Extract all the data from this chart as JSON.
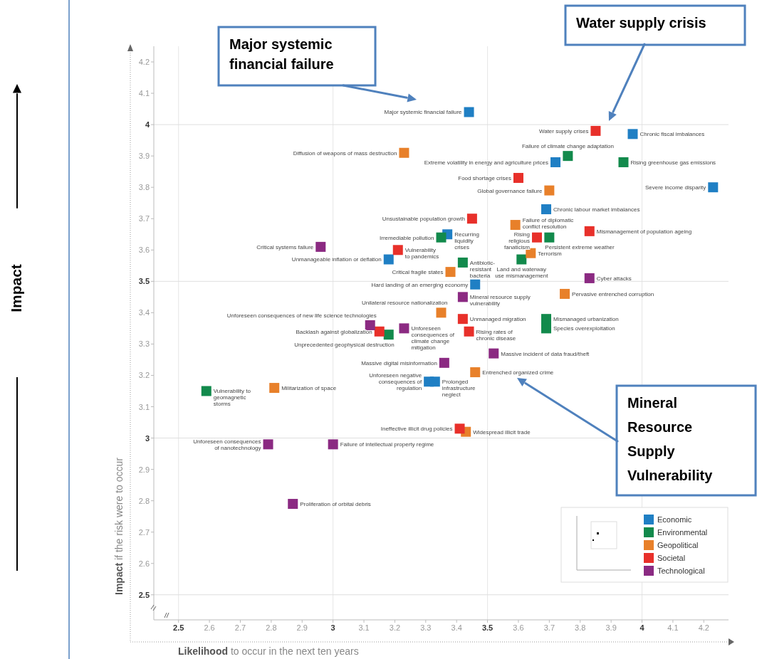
{
  "chart_data": {
    "type": "scatter",
    "xlabel": "Likelihood to occur in the next ten years",
    "ylabel": "Impact if the risk were to occur",
    "xlim": [
      2.42,
      4.28
    ],
    "ylim": [
      2.42,
      4.25
    ],
    "xticks": [
      2.5,
      2.6,
      2.7,
      2.8,
      2.9,
      3,
      3.1,
      3.2,
      3.3,
      3.4,
      3.5,
      3.6,
      3.7,
      3.8,
      3.9,
      4,
      4.1,
      4.2
    ],
    "yticks": [
      2.5,
      2.6,
      2.7,
      2.8,
      2.9,
      3,
      3.1,
      3.2,
      3.3,
      3.4,
      3.5,
      3.6,
      3.7,
      3.8,
      3.9,
      4,
      4.1,
      4.2
    ],
    "marker": "square",
    "legend": "bottom right",
    "grid": false,
    "ref_lines": [
      {
        "axis": "x",
        "value": 2.5,
        "color": "#e6e6e6"
      },
      {
        "axis": "x",
        "value": 3,
        "color": "#e6e6e6"
      },
      {
        "axis": "x",
        "value": 3.5,
        "color": "#e6e6e6"
      },
      {
        "axis": "x",
        "value": 4,
        "color": "#e6e6e6"
      },
      {
        "axis": "y",
        "value": 2.5,
        "color": "#dedede"
      },
      {
        "axis": "y",
        "value": 3,
        "color": "#dedede"
      },
      {
        "axis": "y",
        "value": 3.5,
        "color": "#dedede"
      },
      {
        "axis": "y",
        "value": 4,
        "color": "#dedede"
      }
    ],
    "series": [
      {
        "name": "Economic",
        "color": "#1f7fc4",
        "x": [
          3.44,
          3.97,
          3.72,
          4.23,
          3.69,
          3.37,
          3.18,
          3.46,
          3.31,
          3.33
        ],
        "values": [
          4.04,
          3.97,
          3.88,
          3.8,
          3.73,
          3.65,
          3.57,
          3.49,
          3.18,
          3.18
        ]
      },
      {
        "name": "Environmental",
        "color": "#128a4c",
        "x": [
          3.76,
          3.94,
          3.35,
          3.7,
          3.42,
          3.61,
          3.69,
          3.69,
          3.18,
          2.59
        ],
        "values": [
          3.9,
          3.88,
          3.64,
          3.64,
          3.56,
          3.57,
          3.38,
          3.35,
          3.33,
          3.15
        ]
      },
      {
        "name": "Geopolitical",
        "color": "#e8802a",
        "x": [
          3.23,
          3.7,
          3.59,
          3.64,
          3.38,
          3.75,
          3.35,
          3.46,
          3.43,
          2.81
        ],
        "values": [
          3.91,
          3.79,
          3.68,
          3.59,
          3.53,
          3.46,
          3.4,
          3.21,
          3.02,
          3.16
        ]
      },
      {
        "name": "Societal",
        "color": "#e8302a",
        "x": [
          3.85,
          3.6,
          3.45,
          3.83,
          3.66,
          3.21,
          3.42,
          3.44,
          3.15,
          3.41
        ],
        "values": [
          3.98,
          3.83,
          3.7,
          3.66,
          3.64,
          3.6,
          3.38,
          3.34,
          3.34,
          3.03
        ]
      },
      {
        "name": "Technological",
        "color": "#8b2a82",
        "x": [
          2.96,
          3.83,
          3.42,
          3.12,
          3.23,
          3.36,
          3.52,
          2.79,
          3,
          2.87
        ],
        "values": [
          3.61,
          3.51,
          3.45,
          3.36,
          3.35,
          3.24,
          3.27,
          2.98,
          2.98,
          2.79
        ]
      }
    ],
    "annotations": [
      "Major systemic financial failure",
      "Water supply crisis",
      "Mineral Resource Supply Vulnerability",
      "Impact",
      {
        "text": "Major systemic financial failure",
        "x": 3.44,
        "y": 4.04
      },
      {
        "text": "Chronic fiscal imbalances",
        "x": 3.97,
        "y": 3.97
      },
      {
        "text": "Extreme volatility in energy and agriculture prices",
        "x": 3.72,
        "y": 3.88
      },
      {
        "text": "Severe income disparity",
        "x": 4.23,
        "y": 3.8
      },
      {
        "text": "Chronic labour market imbalances",
        "x": 3.69,
        "y": 3.73
      },
      {
        "text": "Recurring liquidity crises",
        "x": 3.37,
        "y": 3.65
      },
      {
        "text": "Unmanageable inflation or deflation",
        "x": 3.18,
        "y": 3.57
      },
      {
        "text": "Hard landing of an emerging economy",
        "x": 3.46,
        "y": 3.49
      },
      {
        "text": "Unforeseen negative consequences of regulation",
        "x": 3.31,
        "y": 3.18
      },
      {
        "text": "Prolonged infrastructure neglect",
        "x": 3.33,
        "y": 3.18
      },
      {
        "text": "Failure of climate change adaptation",
        "x": 3.76,
        "y": 3.9
      },
      {
        "text": "Rising greenhouse gas emissions",
        "x": 3.94,
        "y": 3.88
      },
      {
        "text": "Irremediable pollution",
        "x": 3.35,
        "y": 3.64
      },
      {
        "text": "Persistent extreme weather",
        "x": 3.7,
        "y": 3.64
      },
      {
        "text": "Antibiotic-resistant bacteria",
        "x": 3.42,
        "y": 3.56
      },
      {
        "text": "Land and waterway use mismanagement",
        "x": 3.61,
        "y": 3.57
      },
      {
        "text": "Mismanaged urbanization",
        "x": 3.69,
        "y": 3.38
      },
      {
        "text": "Species overexploitation",
        "x": 3.69,
        "y": 3.35
      },
      {
        "text": "Unprecedented geophysical destruction",
        "x": 3.18,
        "y": 3.33
      },
      {
        "text": "Vulnerability to geomagnetic storms",
        "x": 2.59,
        "y": 3.15
      },
      {
        "text": "Diffusion of weapons of mass destruction",
        "x": 3.23,
        "y": 3.91
      },
      {
        "text": "Global governance failure",
        "x": 3.7,
        "y": 3.79
      },
      {
        "text": "Failure of diplomatic conflict resolution",
        "x": 3.59,
        "y": 3.68
      },
      {
        "text": "Terrorism",
        "x": 3.64,
        "y": 3.59
      },
      {
        "text": "Critical fragile states",
        "x": 3.38,
        "y": 3.53
      },
      {
        "text": "Pervasive entrenched corruption",
        "x": 3.75,
        "y": 3.46
      },
      {
        "text": "Unilateral resource nationalization",
        "x": 3.35,
        "y": 3.4
      },
      {
        "text": "Entrenched organized crime",
        "x": 3.46,
        "y": 3.21
      },
      {
        "text": "Widespread illicit trade",
        "x": 3.43,
        "y": 3.02
      },
      {
        "text": "Militarization of space",
        "x": 2.81,
        "y": 3.16
      },
      {
        "text": "Water supply crises",
        "x": 3.85,
        "y": 3.98
      },
      {
        "text": "Food shortage crises",
        "x": 3.6,
        "y": 3.83
      },
      {
        "text": "Unsustainable population growth",
        "x": 3.45,
        "y": 3.7
      },
      {
        "text": "Mismanagement of population ageing",
        "x": 3.83,
        "y": 3.66
      },
      {
        "text": "Rising religious fanaticism",
        "x": 3.66,
        "y": 3.64
      },
      {
        "text": "Vulnerability to pandemics",
        "x": 3.21,
        "y": 3.6
      },
      {
        "text": "Unmanaged migration",
        "x": 3.42,
        "y": 3.38
      },
      {
        "text": "Rising rates of chronic disease",
        "x": 3.44,
        "y": 3.34
      },
      {
        "text": "Backlash against globalization",
        "x": 3.15,
        "y": 3.34
      },
      {
        "text": "Ineffective illicit drug policies",
        "x": 3.41,
        "y": 3.03
      },
      {
        "text": "Critical systems failure",
        "x": 2.96,
        "y": 3.61
      },
      {
        "text": "Cyber attacks",
        "x": 3.83,
        "y": 3.51
      },
      {
        "text": "Mineral resource supply vulnerability",
        "x": 3.42,
        "y": 3.45
      },
      {
        "text": "Unforeseen consequences of new life science technologies",
        "x": 3.12,
        "y": 3.36
      },
      {
        "text": "Unforeseen consequences of climate change mitigation",
        "x": 3.23,
        "y": 3.35
      },
      {
        "text": "Massive digital misinformation",
        "x": 3.36,
        "y": 3.24
      },
      {
        "text": "Massive incident of data fraud/theft",
        "x": 3.52,
        "y": 3.27
      },
      {
        "text": "Unforeseen consequences of nanotechnology",
        "x": 2.79,
        "y": 2.98
      },
      {
        "text": "Failure of intellectual property regime",
        "x": 3,
        "y": 2.98
      },
      {
        "text": "Proliferation of orbital debris",
        "x": 2.87,
        "y": 2.79
      }
    ]
  }
}
